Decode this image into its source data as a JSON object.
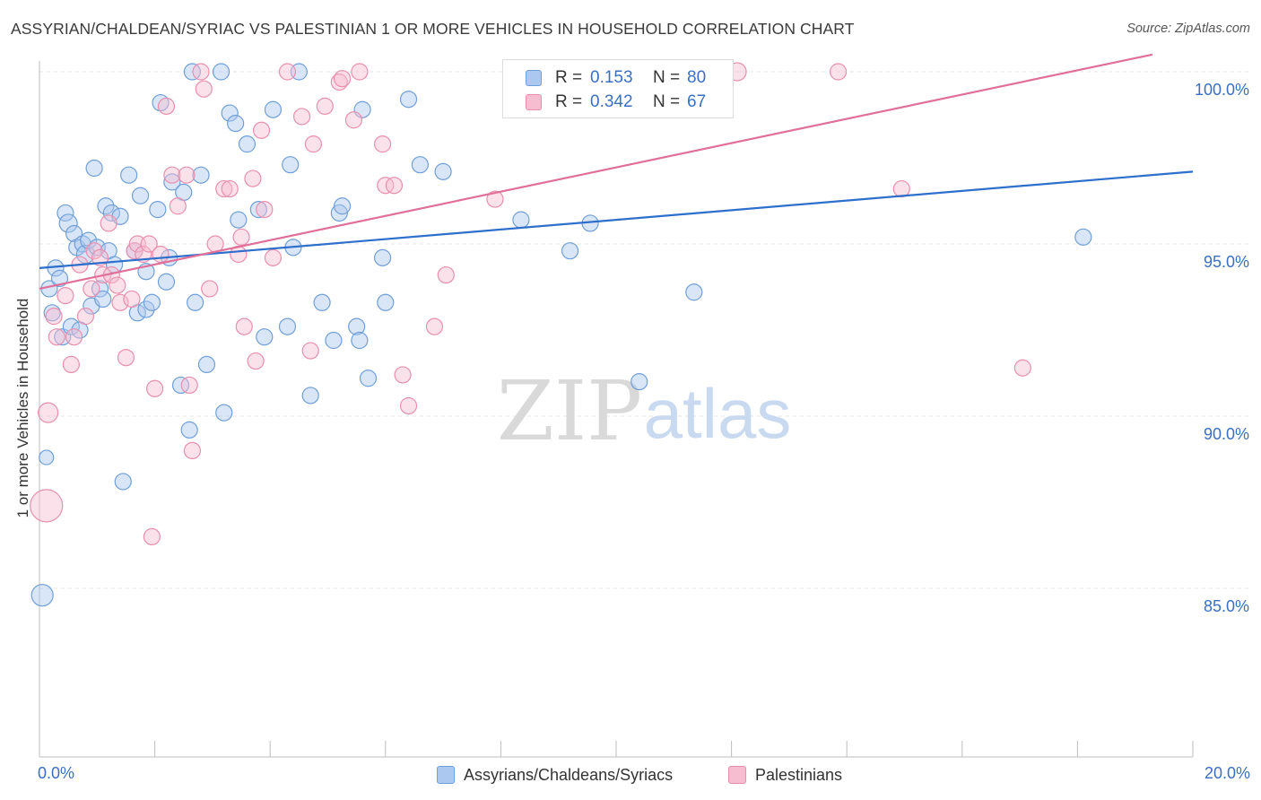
{
  "title": "ASSYRIAN/CHALDEAN/SYRIAC VS PALESTINIAN 1 OR MORE VEHICLES IN HOUSEHOLD CORRELATION CHART",
  "source": "Source: ZipAtlas.com",
  "watermark": {
    "zip": "ZIP",
    "atlas": "atlas"
  },
  "stats_box": {
    "rows": [
      {
        "r_label": "R =",
        "r_value": "0.153",
        "n_label": "N =",
        "n_value": "80"
      },
      {
        "r_label": "R =",
        "r_value": "0.342",
        "n_label": "N =",
        "n_value": "67"
      }
    ]
  },
  "legend": {
    "items": [
      {
        "label": "Assyrians/Chaldeans/Syriacs"
      },
      {
        "label": "Palestinians"
      }
    ]
  },
  "chart_data": {
    "type": "scatter",
    "title": "ASSYRIAN/CHALDEAN/SYRIAC VS PALESTINIAN 1 OR MORE VEHICLES IN HOUSEHOLD CORRELATION CHART",
    "xlabel": "",
    "ylabel": "1 or more Vehicles in Household",
    "xlim": [
      0,
      20
    ],
    "ylim": [
      80.5,
      100.5
    ],
    "x_tick_labels": [
      "0.0%",
      "20.0%"
    ],
    "y_ticks": [
      100,
      95,
      90,
      85
    ],
    "y_tick_labels": [
      "100.0%",
      "95.0%",
      "90.0%",
      "85.0%"
    ],
    "grid": "horizontal dashed",
    "legend_position": "bottom",
    "colors": {
      "blue_fill": "#aac8f0",
      "blue_stroke": "#6f9fd8",
      "blue_line": "#2e6fcc",
      "pink_fill": "#f6bdd0",
      "pink_stroke": "#e88fae",
      "pink_line": "#e0709a",
      "tick_label": "#3a6fc4"
    },
    "series": [
      {
        "name": "Assyrians/Chaldeans/Syriacs",
        "r": 0.153,
        "n": 80,
        "trend": {
          "x": [
            0,
            20
          ],
          "y": [
            94.3,
            97.1
          ]
        },
        "points": [
          [
            0.05,
            84.8
          ],
          [
            0.12,
            88.8
          ],
          [
            0.17,
            93.7
          ],
          [
            0.22,
            93.0
          ],
          [
            0.28,
            94.3
          ],
          [
            0.35,
            94.0
          ],
          [
            0.4,
            92.3
          ],
          [
            0.45,
            95.9
          ],
          [
            0.5,
            95.6
          ],
          [
            0.55,
            92.6
          ],
          [
            0.6,
            95.3
          ],
          [
            0.65,
            94.9
          ],
          [
            0.7,
            92.5
          ],
          [
            0.75,
            95.0
          ],
          [
            0.8,
            94.7
          ],
          [
            0.85,
            95.1
          ],
          [
            0.9,
            93.2
          ],
          [
            0.95,
            97.2
          ],
          [
            1.0,
            94.9
          ],
          [
            1.05,
            93.7
          ],
          [
            1.1,
            93.4
          ],
          [
            1.15,
            96.1
          ],
          [
            1.2,
            94.8
          ],
          [
            1.25,
            95.9
          ],
          [
            1.3,
            94.4
          ],
          [
            1.4,
            95.8
          ],
          [
            1.45,
            88.1
          ],
          [
            1.55,
            97.0
          ],
          [
            1.65,
            94.8
          ],
          [
            1.7,
            93.0
          ],
          [
            1.75,
            96.4
          ],
          [
            1.85,
            94.2
          ],
          [
            1.85,
            93.1
          ],
          [
            1.95,
            93.3
          ],
          [
            2.05,
            96.0
          ],
          [
            2.1,
            99.1
          ],
          [
            2.2,
            93.9
          ],
          [
            2.25,
            94.6
          ],
          [
            2.3,
            96.8
          ],
          [
            2.45,
            90.9
          ],
          [
            2.5,
            96.5
          ],
          [
            2.6,
            89.6
          ],
          [
            2.65,
            100.0
          ],
          [
            2.7,
            93.3
          ],
          [
            2.8,
            97.0
          ],
          [
            2.9,
            91.5
          ],
          [
            3.15,
            100.0
          ],
          [
            3.2,
            90.1
          ],
          [
            3.3,
            98.8
          ],
          [
            3.4,
            98.5
          ],
          [
            3.45,
            95.7
          ],
          [
            3.6,
            97.9
          ],
          [
            3.8,
            96.0
          ],
          [
            3.9,
            92.3
          ],
          [
            4.05,
            98.9
          ],
          [
            4.3,
            92.6
          ],
          [
            4.35,
            97.3
          ],
          [
            4.4,
            94.9
          ],
          [
            4.5,
            100.0
          ],
          [
            4.7,
            90.6
          ],
          [
            4.9,
            93.3
          ],
          [
            5.1,
            92.2
          ],
          [
            5.2,
            95.9
          ],
          [
            5.25,
            96.1
          ],
          [
            5.5,
            92.6
          ],
          [
            5.55,
            92.2
          ],
          [
            5.6,
            98.9
          ],
          [
            5.7,
            91.1
          ],
          [
            5.95,
            94.6
          ],
          [
            6.0,
            93.3
          ],
          [
            6.4,
            99.2
          ],
          [
            6.6,
            97.3
          ],
          [
            7.0,
            97.1
          ],
          [
            8.35,
            95.7
          ],
          [
            9.2,
            94.8
          ],
          [
            9.55,
            95.6
          ],
          [
            10.4,
            91.0
          ],
          [
            11.0,
            98.9
          ],
          [
            11.35,
            93.6
          ],
          [
            18.1,
            95.2
          ]
        ],
        "sizes": {
          "0": 24,
          "1": 16,
          "8": 20,
          "14": 20
        }
      },
      {
        "name": "Palestinians",
        "r": 0.342,
        "n": 67,
        "trend": {
          "x": [
            0,
            19.3
          ],
          "y": [
            93.7,
            100.5
          ]
        },
        "points": [
          [
            0.12,
            87.4
          ],
          [
            0.15,
            90.1
          ],
          [
            0.25,
            92.9
          ],
          [
            0.3,
            92.3
          ],
          [
            0.45,
            93.5
          ],
          [
            0.55,
            91.5
          ],
          [
            0.6,
            92.3
          ],
          [
            0.7,
            94.4
          ],
          [
            0.8,
            92.9
          ],
          [
            0.9,
            93.7
          ],
          [
            0.95,
            94.8
          ],
          [
            1.05,
            94.6
          ],
          [
            1.1,
            94.1
          ],
          [
            1.2,
            95.6
          ],
          [
            1.25,
            94.1
          ],
          [
            1.35,
            93.8
          ],
          [
            1.4,
            93.3
          ],
          [
            1.5,
            91.7
          ],
          [
            1.6,
            93.4
          ],
          [
            1.65,
            94.8
          ],
          [
            1.7,
            95.0
          ],
          [
            1.8,
            94.7
          ],
          [
            1.9,
            95.0
          ],
          [
            1.95,
            86.5
          ],
          [
            2.0,
            90.8
          ],
          [
            2.1,
            94.7
          ],
          [
            2.2,
            99.0
          ],
          [
            2.3,
            97.0
          ],
          [
            2.4,
            96.1
          ],
          [
            2.55,
            97.0
          ],
          [
            2.6,
            90.9
          ],
          [
            2.65,
            89.0
          ],
          [
            2.8,
            100.0
          ],
          [
            2.85,
            99.5
          ],
          [
            2.95,
            93.7
          ],
          [
            3.05,
            95.0
          ],
          [
            3.2,
            96.6
          ],
          [
            3.3,
            96.6
          ],
          [
            3.45,
            94.7
          ],
          [
            3.5,
            95.2
          ],
          [
            3.55,
            92.6
          ],
          [
            3.7,
            96.9
          ],
          [
            3.75,
            91.6
          ],
          [
            3.85,
            98.3
          ],
          [
            3.9,
            96.0
          ],
          [
            4.05,
            94.6
          ],
          [
            4.3,
            100.0
          ],
          [
            4.55,
            98.7
          ],
          [
            4.7,
            91.9
          ],
          [
            4.75,
            97.9
          ],
          [
            4.95,
            99.0
          ],
          [
            5.2,
            99.7
          ],
          [
            5.25,
            99.8
          ],
          [
            5.45,
            98.6
          ],
          [
            5.55,
            100.0
          ],
          [
            5.95,
            97.9
          ],
          [
            6.0,
            96.7
          ],
          [
            6.15,
            96.7
          ],
          [
            6.3,
            91.2
          ],
          [
            6.4,
            90.3
          ],
          [
            6.85,
            92.6
          ],
          [
            7.05,
            94.1
          ],
          [
            7.9,
            96.3
          ],
          [
            12.1,
            100.0
          ],
          [
            13.85,
            100.0
          ],
          [
            14.95,
            96.6
          ],
          [
            17.05,
            91.4
          ]
        ],
        "sizes": {
          "0": 36,
          "1": 22,
          "63": 20
        }
      }
    ]
  }
}
